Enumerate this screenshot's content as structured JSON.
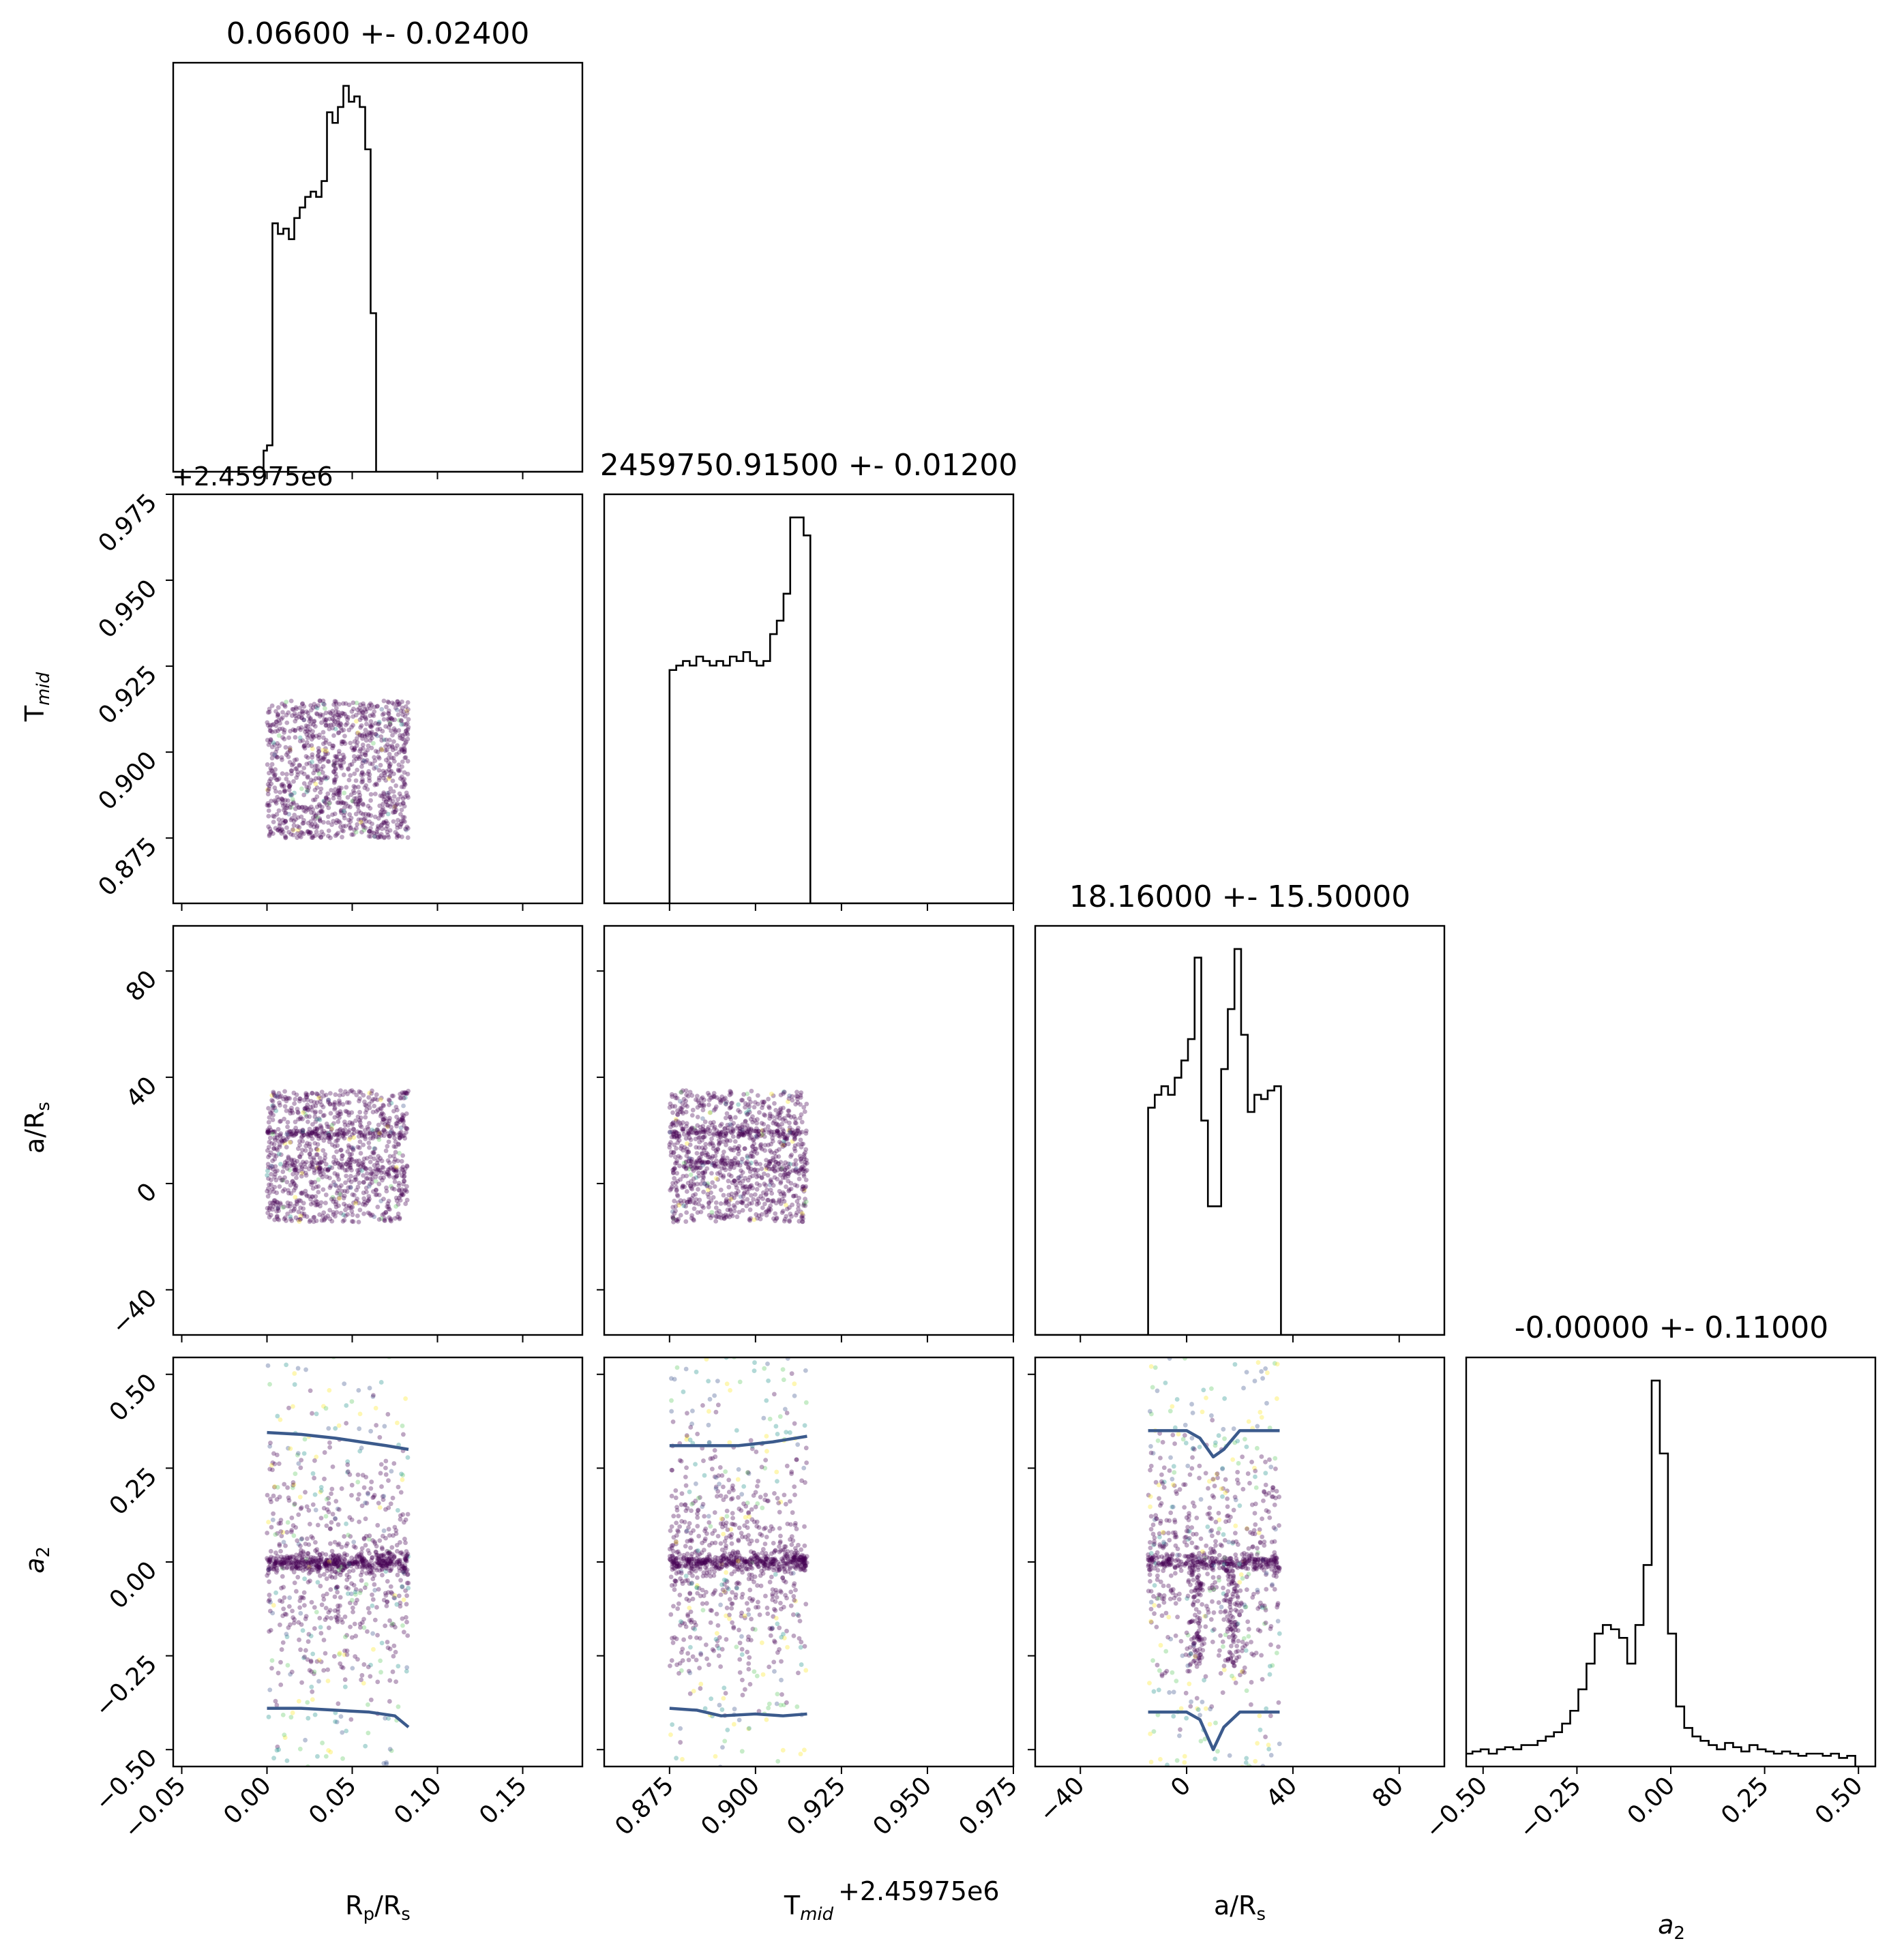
{
  "chart_data": {
    "type": "corner",
    "parameters": [
      {
        "key": "rp",
        "label_main": "R",
        "label_sub": "p",
        "label_tail": "/R",
        "label_sub2": "s",
        "title": "0.06600 +- 0.02400"
      },
      {
        "key": "tmid",
        "label_main": "T",
        "label_sub": "mid",
        "label_tail": "",
        "label_sub2": "",
        "title": "2459750.91500 +- 0.01200",
        "offset_text": "+2.45975e6"
      },
      {
        "key": "ars",
        "label_main": "a/R",
        "label_sub": "s",
        "label_tail": "",
        "label_sub2": "",
        "title": "18.16000 +- 15.50000"
      },
      {
        "key": "a2",
        "label_main": "a",
        "label_sub": "2",
        "label_tail": "",
        "label_sub2": "",
        "title": "-0.00000 +- 0.11000"
      }
    ],
    "axes": {
      "rp": {
        "range": [
          -0.055,
          0.185
        ],
        "ticks": [
          -0.05,
          0.0,
          0.05,
          0.1,
          0.15
        ],
        "ticklabels": [
          "−0.05",
          "0.00",
          "0.05",
          "0.10",
          "0.15"
        ]
      },
      "tmid": {
        "range": [
          0.856,
          0.975
        ],
        "ticks": [
          0.875,
          0.9,
          0.925,
          0.95,
          0.975
        ],
        "ticklabels": [
          "0.875",
          "0.900",
          "0.925",
          "0.950",
          "0.975"
        ]
      },
      "ars": {
        "range": [
          -57,
          97
        ],
        "ticks": [
          -40,
          0,
          40,
          80
        ],
        "ticklabels": [
          "−40",
          "0",
          "40",
          "80"
        ]
      },
      "a2": {
        "range": [
          -0.545,
          0.545
        ],
        "ticks": [
          -0.5,
          -0.25,
          0.0,
          0.25,
          0.5
        ],
        "ticklabels": [
          "−0.50",
          "−0.25",
          "0.00",
          "0.25",
          "0.50"
        ]
      }
    },
    "histograms": {
      "rp": {
        "edges_start": 0.0,
        "bin_width": 0.0032,
        "values": [
          0.5,
          4.7,
          4.5,
          4.6,
          4.4,
          4.8,
          5.0,
          5.2,
          5.3,
          5.2,
          5.5,
          6.8,
          6.6,
          6.9,
          7.3,
          7.0,
          7.1,
          6.9,
          6.1,
          3.0
        ],
        "lead_in": [
          [
            -0.002,
            0.0,
            0.4
          ]
        ]
      },
      "tmid": {
        "edges_start": 0.875,
        "bin_width": 0.00195,
        "values": [
          5.2,
          5.3,
          5.4,
          5.3,
          5.5,
          5.4,
          5.3,
          5.4,
          5.3,
          5.5,
          5.4,
          5.6,
          5.4,
          5.3,
          5.4,
          6.0,
          6.3,
          6.9,
          8.6,
          8.6,
          8.2
        ]
      },
      "ars": {
        "edges_start": -14.5,
        "bin_width": 2.5,
        "values": [
          5.3,
          5.6,
          5.8,
          5.6,
          6.0,
          6.4,
          6.9,
          8.8,
          5.0,
          3.0,
          3.0,
          6.2,
          7.6,
          9.0,
          7.0,
          5.2,
          5.6,
          5.5,
          5.7,
          5.8
        ]
      },
      "a2": {
        "edges_start": -0.55,
        "bin_width": 0.0217,
        "values": [
          0.3,
          0.35,
          0.4,
          0.3,
          0.4,
          0.45,
          0.4,
          0.5,
          0.5,
          0.6,
          0.7,
          0.8,
          1.0,
          1.3,
          1.8,
          2.4,
          3.1,
          3.3,
          3.2,
          3.0,
          2.4,
          3.3,
          4.7,
          9.0,
          7.3,
          3.1,
          1.4,
          0.9,
          0.7,
          0.6,
          0.5,
          0.4,
          0.55,
          0.45,
          0.35,
          0.5,
          0.4,
          0.35,
          0.3,
          0.35,
          0.3,
          0.25,
          0.3,
          0.3,
          0.25,
          0.3,
          0.2,
          0.25
        ]
      }
    },
    "scatter": {
      "point_colors": [
        "#440154",
        "#440154",
        "#440154",
        "#3b528b",
        "#21918c",
        "#5ec962",
        "#fde725"
      ],
      "rp_bounds": [
        0.0,
        0.083
      ],
      "tmid_bounds": [
        0.875,
        0.915
      ],
      "ars_bounds": [
        -14.5,
        35
      ],
      "a2_bounds": [
        -0.55,
        0.55
      ]
    },
    "contour_lines": {
      "color": "#3b5a8c",
      "a2_vs_rp": {
        "upper": [
          [
            0.0,
            0.345
          ],
          [
            0.02,
            0.34
          ],
          [
            0.04,
            0.33
          ],
          [
            0.055,
            0.32
          ],
          [
            0.07,
            0.31
          ],
          [
            0.083,
            0.3
          ]
        ],
        "lower": [
          [
            0.0,
            -0.39
          ],
          [
            0.02,
            -0.39
          ],
          [
            0.04,
            -0.395
          ],
          [
            0.06,
            -0.4
          ],
          [
            0.075,
            -0.41
          ],
          [
            0.083,
            -0.44
          ]
        ]
      },
      "a2_vs_tmid": {
        "upper": [
          [
            0.875,
            0.31
          ],
          [
            0.885,
            0.31
          ],
          [
            0.895,
            0.31
          ],
          [
            0.905,
            0.32
          ],
          [
            0.915,
            0.335
          ]
        ],
        "lower": [
          [
            0.875,
            -0.39
          ],
          [
            0.883,
            -0.395
          ],
          [
            0.89,
            -0.41
          ],
          [
            0.9,
            -0.405
          ],
          [
            0.908,
            -0.41
          ],
          [
            0.915,
            -0.405
          ]
        ]
      },
      "a2_vs_ars": {
        "upper": [
          [
            -14.5,
            0.35
          ],
          [
            0,
            0.35
          ],
          [
            5,
            0.33
          ],
          [
            10,
            0.28
          ],
          [
            14,
            0.3
          ],
          [
            20,
            0.35
          ],
          [
            35,
            0.35
          ]
        ],
        "lower": [
          [
            -14.5,
            -0.4
          ],
          [
            0,
            -0.4
          ],
          [
            5,
            -0.42
          ],
          [
            10,
            -0.5
          ],
          [
            14,
            -0.44
          ],
          [
            20,
            -0.4
          ],
          [
            35,
            -0.4
          ]
        ]
      }
    }
  }
}
